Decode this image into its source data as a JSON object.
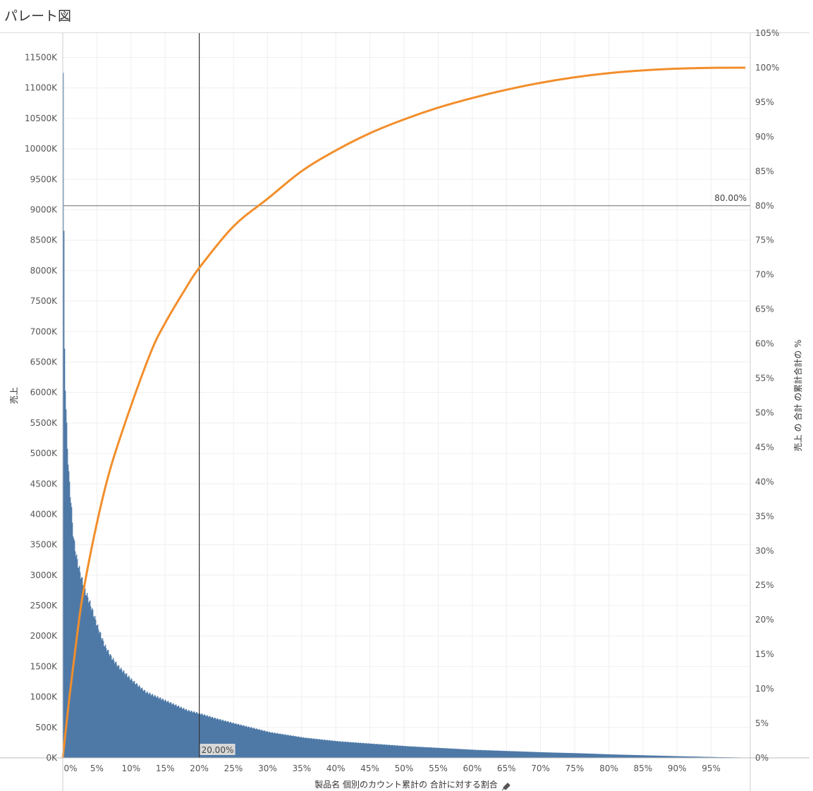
{
  "title": "パレート図",
  "chart_data": {
    "type": "bar",
    "secondary_type": "line",
    "y_left_label": "売上",
    "y_right_label": "売上 の 合計 の累計合計の %",
    "x_label": "製品名 個別のカウント累計の 合計に対する割合",
    "pin_icon": "pin-icon",
    "y_left_ticks": [
      "0K",
      "500K",
      "1000K",
      "1500K",
      "2000K",
      "2500K",
      "3000K",
      "3500K",
      "4000K",
      "4500K",
      "5000K",
      "5500K",
      "6000K",
      "6500K",
      "7000K",
      "7500K",
      "8000K",
      "8500K",
      "9000K",
      "9500K",
      "10000K",
      "10500K",
      "11000K",
      "11500K"
    ],
    "y_right_ticks": [
      "0%",
      "5%",
      "10%",
      "15%",
      "20%",
      "25%",
      "30%",
      "35%",
      "40%",
      "45%",
      "50%",
      "55%",
      "60%",
      "65%",
      "70%",
      "75%",
      "80%",
      "85%",
      "90%",
      "95%",
      "100%",
      "105%"
    ],
    "x_ticks": [
      "0%",
      "5%",
      "10%",
      "15%",
      "20%",
      "25%",
      "30%",
      "35%",
      "40%",
      "45%",
      "50%",
      "55%",
      "60%",
      "65%",
      "70%",
      "75%",
      "80%",
      "85%",
      "90%",
      "95%"
    ],
    "y_left_range": [
      0,
      11900
    ],
    "y_right_range": [
      0,
      105
    ],
    "x_range": [
      0,
      100
    ],
    "bar_color": "#4e79a7",
    "line_color": "#f28e2b",
    "bar_profile_x_pct": [
      0,
      0.1,
      0.2,
      0.3,
      0.5,
      0.8,
      1,
      1.5,
      2,
      3,
      4,
      5,
      6,
      7,
      8,
      10,
      12,
      15,
      18,
      20,
      22,
      25,
      30,
      35,
      40,
      45,
      50,
      55,
      60,
      65,
      70,
      75,
      80,
      85,
      90,
      95,
      99
    ],
    "bar_profile_sales_k": [
      11250,
      8700,
      6750,
      6050,
      5450,
      4650,
      4400,
      3600,
      3250,
      2800,
      2500,
      2150,
      1850,
      1650,
      1500,
      1270,
      1080,
      930,
      780,
      720,
      650,
      560,
      420,
      330,
      270,
      230,
      190,
      160,
      130,
      110,
      90,
      75,
      55,
      40,
      25,
      12,
      5
    ],
    "cumulative_x_pct": [
      0,
      1,
      2,
      3,
      5,
      7,
      10,
      13,
      15,
      18,
      20,
      25,
      30,
      35,
      40,
      45,
      50,
      55,
      60,
      65,
      70,
      75,
      80,
      85,
      90,
      95,
      100
    ],
    "cumulative_pct": [
      0,
      9,
      17,
      24,
      34,
      42,
      51,
      59,
      63,
      68,
      71,
      77,
      81,
      85,
      88,
      90.5,
      92.5,
      94.2,
      95.6,
      96.8,
      97.8,
      98.6,
      99.2,
      99.6,
      99.85,
      99.97,
      100
    ],
    "reference_lines": [
      {
        "axis": "x",
        "value": 20,
        "label": "20.00%"
      },
      {
        "axis": "y_right",
        "value": 80,
        "label": "80.00%"
      }
    ]
  }
}
